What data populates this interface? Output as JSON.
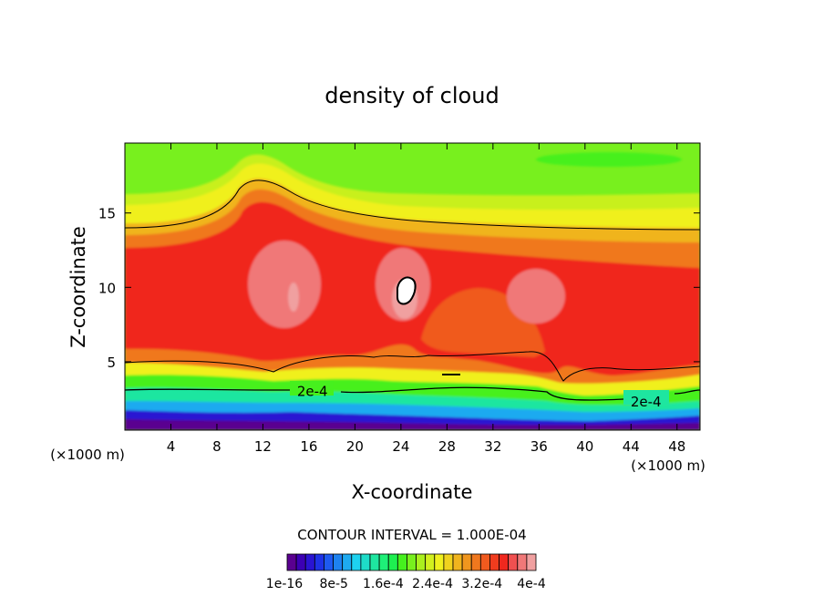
{
  "chart_data": {
    "type": "heatmap",
    "title": "density of cloud",
    "xlabel": "X-coordinate",
    "ylabel": "Z-coordinate",
    "x_unit": "(×1000 m)",
    "x_unit_right": "(×1000 m)",
    "xlim": [
      0,
      50
    ],
    "ylim": [
      0.4,
      19.7
    ],
    "x_ticks": [
      4,
      8,
      12,
      16,
      20,
      24,
      28,
      32,
      36,
      40,
      44,
      48
    ],
    "y_ticks": [
      5,
      10,
      15
    ],
    "grid": false,
    "contour_labels": [
      {
        "text": "2e-4",
        "x": 16.3,
        "z": 3.0
      },
      {
        "text": "2e-4",
        "x": 45.3,
        "z": 2.3
      }
    ],
    "contour_interval_text": "CONTOUR INTERVAL = 1.000E-04",
    "colorbar": {
      "colors": [
        "#5a0090",
        "#3c00b4",
        "#2a14d2",
        "#1e32e6",
        "#1e5af0",
        "#1e82f0",
        "#1eaaf0",
        "#1ed2f0",
        "#1edcc8",
        "#1ee6a0",
        "#1ef078",
        "#1ef050",
        "#46f01e",
        "#78f01e",
        "#aaf01e",
        "#d2f01e",
        "#f0f01e",
        "#f0d21e",
        "#f0b41e",
        "#f0961e",
        "#f0781e",
        "#f05a1e",
        "#f03c1e",
        "#f0281e",
        "#f05050",
        "#f07878",
        "#f0a0a0"
      ],
      "tick_labels": [
        "1e-16",
        "8e-5",
        "1.6e-4",
        "2.4e-4",
        "3.2e-4",
        "4e-4"
      ]
    }
  }
}
